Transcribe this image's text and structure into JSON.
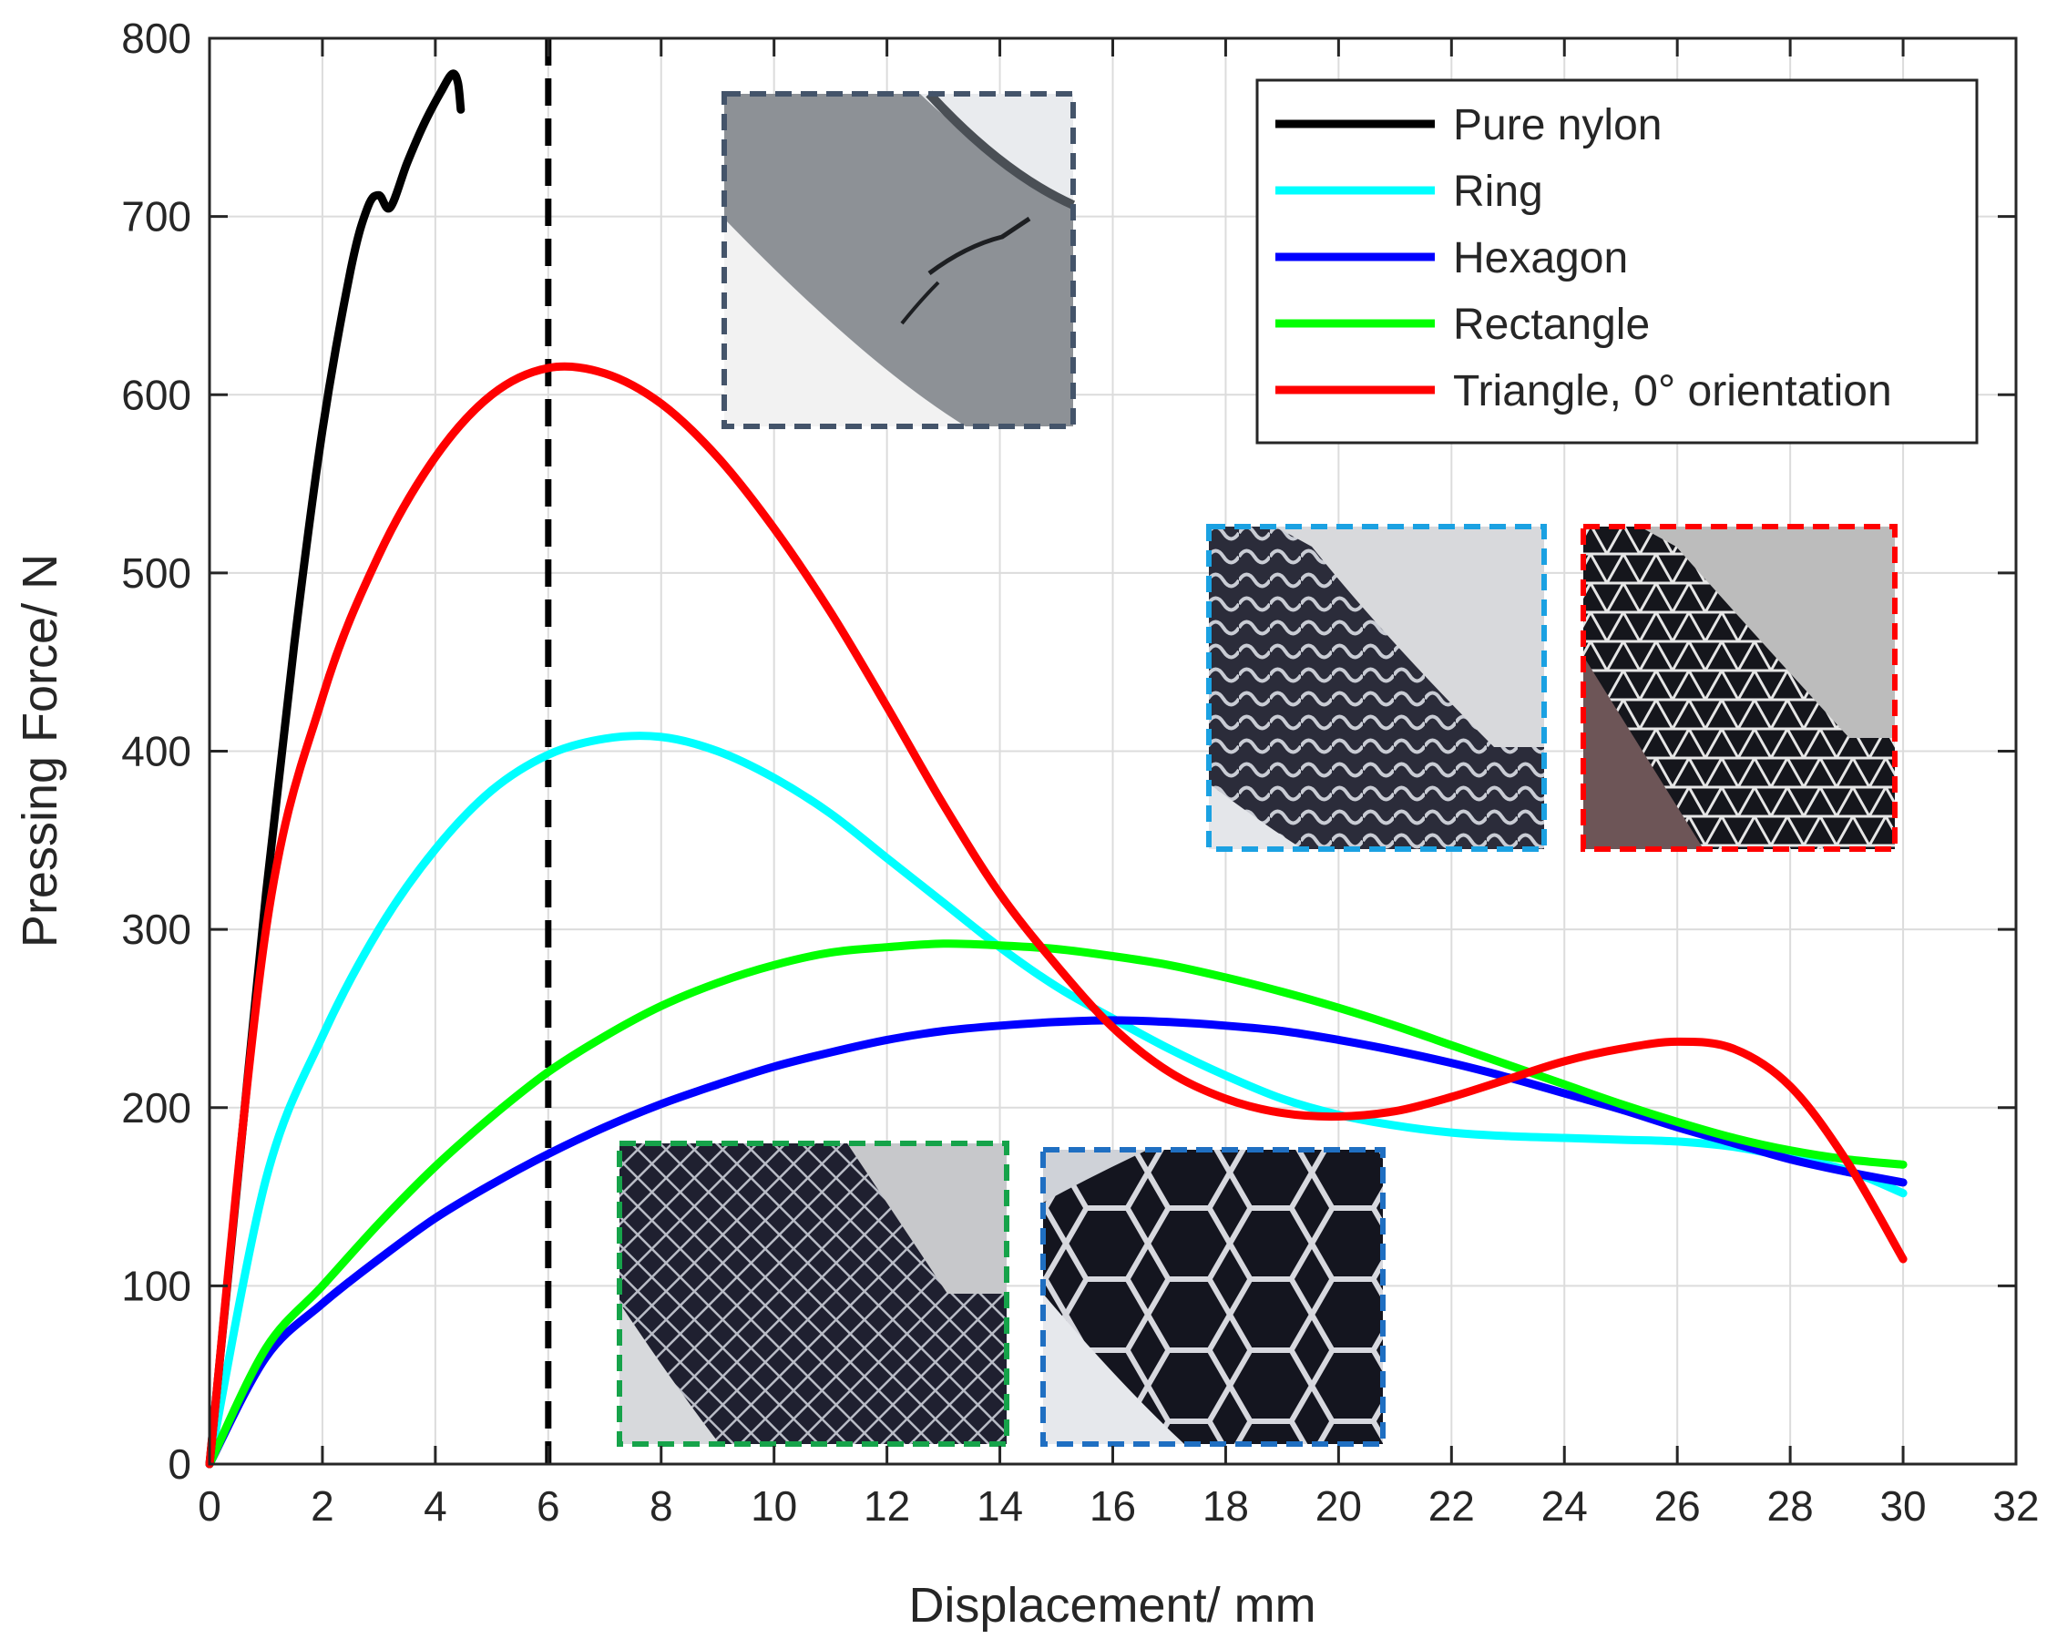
{
  "chart_data": {
    "type": "line",
    "title": "",
    "xlabel": "Displacement/ mm",
    "ylabel": "Pressing Force/ N",
    "xlim": [
      0,
      32
    ],
    "ylim": [
      0,
      800
    ],
    "xticks": [
      0,
      2,
      4,
      6,
      8,
      10,
      12,
      14,
      16,
      18,
      20,
      22,
      24,
      26,
      28,
      30,
      32
    ],
    "yticks": [
      0,
      100,
      200,
      300,
      400,
      500,
      600,
      700,
      800
    ],
    "grid": true,
    "legend_position": "top-right",
    "reference_line": {
      "x": 6,
      "style": "dashed",
      "color": "#000000"
    },
    "series": [
      {
        "name": "Pure nylon",
        "color": "#000000",
        "x": [
          0,
          0.5,
          1.0,
          1.5,
          2.0,
          2.5,
          2.8,
          3.0,
          3.2,
          3.5,
          3.8,
          4.1,
          4.3,
          4.4,
          4.45
        ],
        "y": [
          0,
          160,
          320,
          460,
          580,
          670,
          705,
          712,
          705,
          730,
          752,
          770,
          780,
          775,
          760
        ]
      },
      {
        "name": "Ring",
        "color": "#00ffff",
        "x": [
          0,
          1,
          2,
          3,
          4,
          5,
          6,
          7,
          8,
          9,
          10,
          11,
          12,
          13,
          14,
          15,
          16,
          17,
          18,
          19,
          20,
          21,
          22,
          23,
          24,
          25,
          26,
          27,
          28,
          29,
          30
        ],
        "y": [
          0,
          160,
          240,
          300,
          345,
          378,
          398,
          407,
          408,
          400,
          385,
          365,
          340,
          315,
          290,
          268,
          250,
          233,
          218,
          205,
          196,
          190,
          186,
          184,
          183,
          182,
          181,
          178,
          172,
          165,
          152
        ]
      },
      {
        "name": "Hexagon",
        "color": "#0000ff",
        "x": [
          0,
          1,
          2,
          3,
          4,
          5,
          6,
          7,
          8,
          9,
          10,
          11,
          12,
          13,
          14,
          15,
          16,
          17,
          18,
          19,
          20,
          21,
          22,
          23,
          24,
          25,
          26,
          27,
          28,
          29,
          30
        ],
        "y": [
          0,
          60,
          90,
          115,
          138,
          157,
          174,
          189,
          202,
          213,
          223,
          231,
          238,
          243,
          246,
          248,
          249,
          248,
          246,
          243,
          238,
          232,
          225,
          217,
          208,
          199,
          189,
          180,
          171,
          164,
          158
        ]
      },
      {
        "name": "Rectangle",
        "color": "#00ff00",
        "x": [
          0,
          1,
          2,
          3,
          4,
          5,
          6,
          7,
          8,
          9,
          10,
          11,
          12,
          13,
          14,
          15,
          16,
          17,
          18,
          19,
          20,
          21,
          22,
          23,
          24,
          25,
          26,
          27,
          28,
          29,
          30
        ],
        "y": [
          0,
          65,
          100,
          135,
          167,
          195,
          220,
          240,
          257,
          270,
          280,
          287,
          290,
          292,
          291,
          289,
          285,
          280,
          273,
          265,
          256,
          246,
          235,
          224,
          213,
          202,
          192,
          183,
          176,
          171,
          168
        ]
      },
      {
        "name": "Triangle, 0° orientation",
        "color": "#ff0000",
        "x": [
          0,
          1,
          2,
          3,
          4,
          5,
          6,
          7,
          8,
          9,
          10,
          11,
          12,
          13,
          14,
          15,
          16,
          17,
          18,
          19,
          20,
          21,
          22,
          23,
          24,
          25,
          26,
          27,
          28,
          29,
          30
        ],
        "y": [
          0,
          300,
          430,
          510,
          565,
          600,
          615,
          612,
          595,
          565,
          525,
          478,
          425,
          370,
          320,
          280,
          245,
          220,
          205,
          197,
          195,
          198,
          206,
          216,
          226,
          233,
          237,
          233,
          212,
          170,
          115
        ]
      }
    ]
  },
  "insets": [
    {
      "name": "pure-nylon-fracture",
      "label": "",
      "frame_color": "#44546a"
    },
    {
      "name": "ring-specimen",
      "label": "",
      "frame_color": "#1ba1e2"
    },
    {
      "name": "triangle-specimen",
      "label": "",
      "frame_color": "#ff0000"
    },
    {
      "name": "rectangle-specimen",
      "label": "",
      "frame_color": "#16a34a"
    },
    {
      "name": "hexagon-specimen",
      "label": "",
      "frame_color": "#1f6fc2"
    }
  ]
}
